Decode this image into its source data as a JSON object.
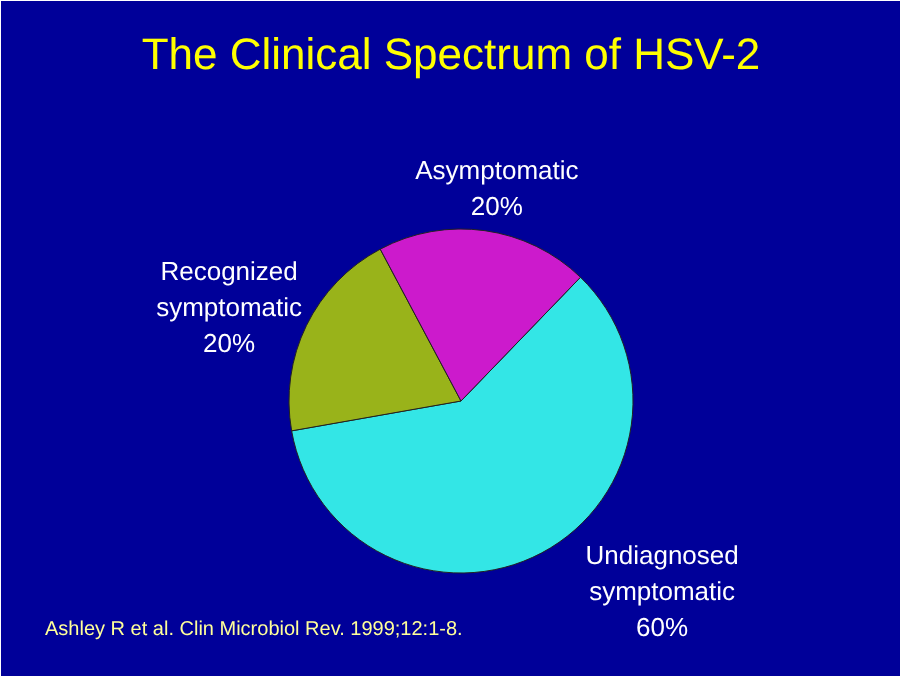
{
  "chart_data": {
    "type": "pie",
    "title": "The Clinical Spectrum of HSV-2",
    "categories": [
      "Undiagnosed symptomatic",
      "Recognized symptomatic",
      "Asymptomatic"
    ],
    "values": [
      60,
      20,
      20
    ],
    "colors": [
      "#33e6e6",
      "#99b31a",
      "#cc1acc"
    ],
    "value_labels": [
      "60%",
      "20%",
      "20%"
    ],
    "annotations": [
      "Ashley R et al. Clin Microbiol Rev. 1999;12:1-8."
    ]
  }
}
